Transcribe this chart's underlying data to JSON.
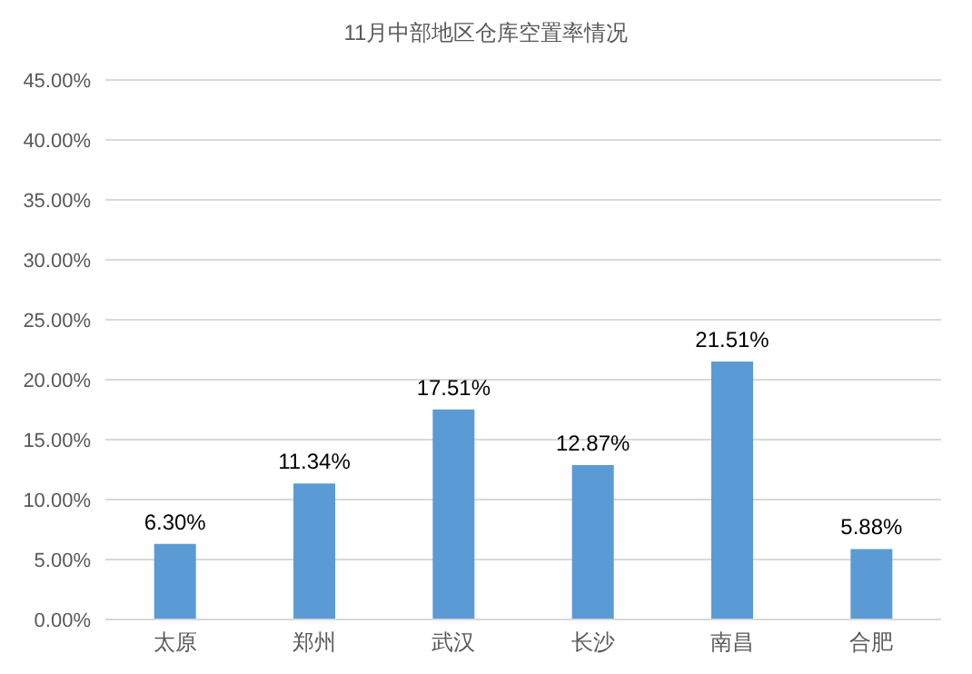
{
  "chart_data": {
    "type": "bar",
    "title": "11月中部地区仓库空置率情况",
    "categories": [
      "太原",
      "郑州",
      "武汉",
      "长沙",
      "南昌",
      "合肥"
    ],
    "values": [
      6.3,
      11.34,
      17.51,
      12.87,
      21.51,
      5.88
    ],
    "value_labels": [
      "6.30%",
      "11.34%",
      "17.51%",
      "12.87%",
      "21.51%",
      "5.88%"
    ],
    "color": "#5b9bd5",
    "ylim": [
      0,
      45
    ],
    "yticks": [
      {
        "value": 0,
        "label": "0.00%"
      },
      {
        "value": 5,
        "label": "5.00%"
      },
      {
        "value": 10,
        "label": "10.00%"
      },
      {
        "value": 15,
        "label": "15.00%"
      },
      {
        "value": 20,
        "label": "20.00%"
      },
      {
        "value": 25,
        "label": "25.00%"
      },
      {
        "value": 30,
        "label": "30.00%"
      },
      {
        "value": 35,
        "label": "35.00%"
      },
      {
        "value": 40,
        "label": "40.00%"
      },
      {
        "value": 45,
        "label": "45.00%"
      }
    ],
    "grid": "y"
  }
}
